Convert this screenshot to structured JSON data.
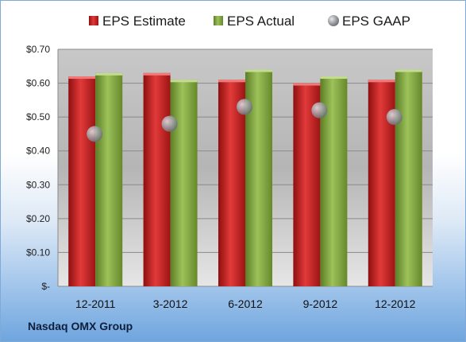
{
  "company": "Nasdaq OMX Group",
  "chart_data": {
    "type": "bar",
    "categories": [
      "12-2011",
      "3-2012",
      "6-2012",
      "9-2012",
      "12-2012"
    ],
    "series": [
      {
        "name": "EPS Estimate",
        "kind": "bar",
        "color": "#d42a2a",
        "values": [
          0.62,
          0.63,
          0.61,
          0.6,
          0.61
        ]
      },
      {
        "name": "EPS Actual",
        "kind": "bar",
        "color": "#8cb24a",
        "values": [
          0.63,
          0.61,
          0.64,
          0.62,
          0.64
        ]
      },
      {
        "name": "EPS GAAP",
        "kind": "marker",
        "color": "#b9bcc2",
        "values": [
          0.45,
          0.48,
          0.53,
          0.52,
          0.5
        ]
      }
    ],
    "ylim": [
      0,
      0.7
    ],
    "yticks": [
      0,
      0.1,
      0.2,
      0.3,
      0.4,
      0.5,
      0.6,
      0.7
    ],
    "ytick_labels": [
      "$-",
      "$0.10",
      "$0.20",
      "$0.30",
      "$0.40",
      "$0.50",
      "$0.60",
      "$0.70"
    ],
    "grid": true,
    "legend_position": "top"
  }
}
